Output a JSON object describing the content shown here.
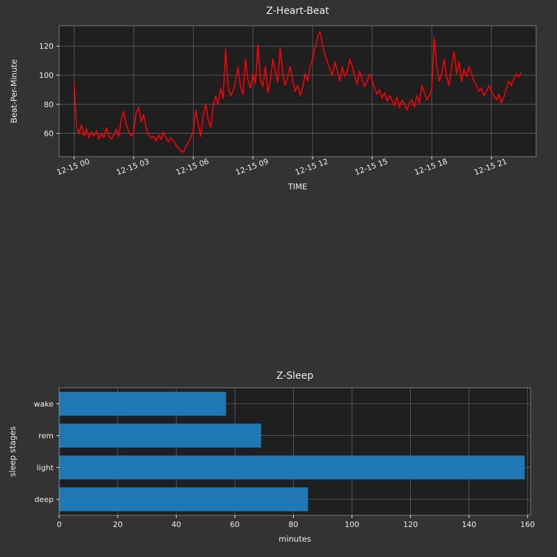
{
  "colors": {
    "figure_bg": "#333333",
    "axes_bg": "#1f1f1f",
    "grid": "#9a9a9a",
    "text": "#eeeeee",
    "spine": "#bbbbbb",
    "heart_line": "#ff0000",
    "bar_fill": "#1f77b4"
  },
  "chart_data": [
    {
      "type": "line",
      "title": "Z-Heart-Beat",
      "xlabel": "TIME",
      "ylabel": "Beat-Per-Minute",
      "legend": "none",
      "grid": "on",
      "x_tick_hours": [
        0,
        3,
        6,
        9,
        12,
        15,
        18,
        21
      ],
      "x_tick_labels": [
        "12-15 00",
        "12-15 03",
        "12-15 06",
        "12-15 09",
        "12-15 12",
        "12-15 15",
        "12-15 18",
        "12-15 21"
      ],
      "y_ticks": [
        60,
        80,
        100,
        120
      ],
      "xlim_hours": [
        -0.75,
        23.25
      ],
      "ylim": [
        44,
        134
      ],
      "series_name": "bpm",
      "x_start_hour": 0,
      "x_step_hours": 0.125,
      "y": [
        95,
        64,
        60,
        66,
        58,
        63,
        57,
        61,
        58,
        62,
        56,
        60,
        57,
        64,
        58,
        56,
        59,
        63,
        58,
        70,
        75,
        66,
        61,
        58,
        61,
        74,
        78,
        68,
        73,
        64,
        59,
        57,
        58,
        55,
        59,
        56,
        61,
        57,
        54,
        57,
        55,
        52,
        50,
        48,
        47,
        51,
        54,
        57,
        62,
        76,
        66,
        58,
        73,
        80,
        69,
        64,
        79,
        86,
        80,
        91,
        84,
        118,
        92,
        86,
        89,
        96,
        106,
        92,
        87,
        111,
        97,
        91,
        101,
        94,
        121,
        97,
        92,
        106,
        88,
        96,
        111,
        103,
        95,
        119,
        101,
        93,
        99,
        106,
        96,
        89,
        93,
        86,
        91,
        101,
        96,
        106,
        111,
        119,
        126,
        130,
        121,
        114,
        109,
        104,
        100,
        109,
        103,
        96,
        106,
        99,
        103,
        111,
        106,
        99,
        94,
        103,
        97,
        92,
        96,
        101,
        97,
        91,
        87,
        90,
        84,
        88,
        82,
        86,
        83,
        79,
        85,
        78,
        83,
        80,
        76,
        81,
        83,
        78,
        86,
        81,
        93,
        88,
        83,
        86,
        91,
        126,
        106,
        96,
        101,
        111,
        99,
        93,
        106,
        116,
        101,
        109,
        96,
        104,
        99,
        106,
        101,
        96,
        93,
        89,
        91,
        86,
        89,
        93,
        89,
        86,
        83,
        87,
        81,
        85,
        91,
        96,
        93,
        97,
        101,
        99,
        102
      ]
    },
    {
      "type": "bar",
      "orientation": "horizontal",
      "title": "Z-Sleep",
      "xlabel": "minutes",
      "ylabel": "sleep stages",
      "legend": "none",
      "grid": "on",
      "categories": [
        "wake",
        "rem",
        "light",
        "deep"
      ],
      "values": [
        57,
        69,
        159,
        85
      ],
      "x_ticks": [
        0,
        20,
        40,
        60,
        80,
        100,
        120,
        140,
        160
      ],
      "xlim": [
        0,
        161
      ]
    }
  ]
}
